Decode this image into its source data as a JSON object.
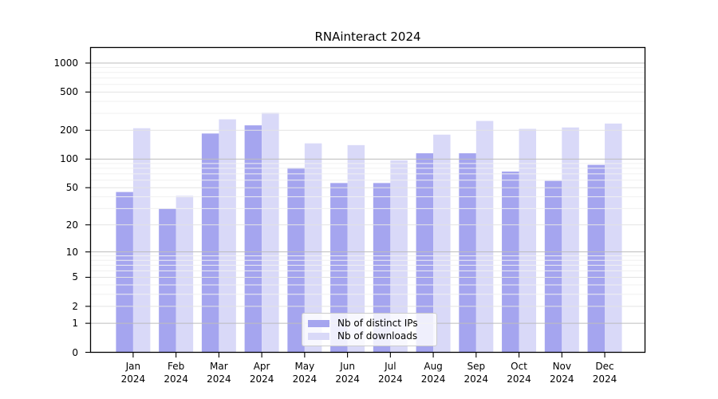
{
  "chart_data": {
    "type": "bar",
    "title": "RNAinteract 2024",
    "categories": [
      "Jan",
      "Feb",
      "Mar",
      "Apr",
      "May",
      "Jun",
      "Jul",
      "Aug",
      "Sep",
      "Oct",
      "Nov",
      "Dec"
    ],
    "x_year": "2024",
    "series": [
      {
        "name": "Nb of distinct IPs",
        "color": "#a5a5ef",
        "values": [
          45,
          30,
          185,
          225,
          81,
          56,
          56,
          115,
          115,
          74,
          59,
          87
        ]
      },
      {
        "name": "Nb of downloads",
        "color": "#d9d9f8",
        "values": [
          210,
          41,
          260,
          305,
          146,
          140,
          97,
          180,
          250,
          207,
          214,
          235
        ]
      }
    ],
    "y_ticks": [
      0,
      1,
      2,
      5,
      10,
      20,
      50,
      100,
      200,
      500,
      1000
    ],
    "y_scale": "log10(value+1)",
    "ylim": [
      0,
      1460
    ],
    "grid": {
      "on": true,
      "decade_line_color": "#bdbdbd",
      "labeled_line_color": "#e3e3e3",
      "minor_line_color": "#f0f0f0"
    },
    "legend_position": "lower center inside plot",
    "axis_color": "#000000"
  }
}
